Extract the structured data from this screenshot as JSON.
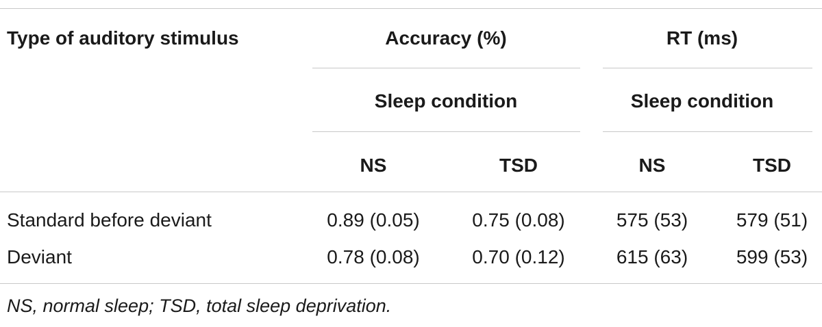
{
  "table": {
    "header": {
      "stimulus_col": "Type of auditory stimulus",
      "accuracy_group": "Accuracy (%)",
      "rt_group": "RT (ms)",
      "accuracy_sub": "Sleep condition",
      "rt_sub": "Sleep condition",
      "acc_ns": "NS",
      "acc_tsd": "TSD",
      "rt_ns": "NS",
      "rt_tsd": "TSD"
    },
    "rows": [
      {
        "label": "Standard before deviant",
        "acc_ns": "0.89 (0.05)",
        "acc_tsd": "0.75 (0.08)",
        "rt_ns": "575 (53)",
        "rt_tsd": "579 (51)"
      },
      {
        "label": "Deviant",
        "acc_ns": "0.78 (0.08)",
        "acc_tsd": "0.70 (0.12)",
        "rt_ns": "615 (63)",
        "rt_tsd": "599 (53)"
      }
    ],
    "footnote": "NS, normal sleep; TSD, total sleep deprivation."
  }
}
